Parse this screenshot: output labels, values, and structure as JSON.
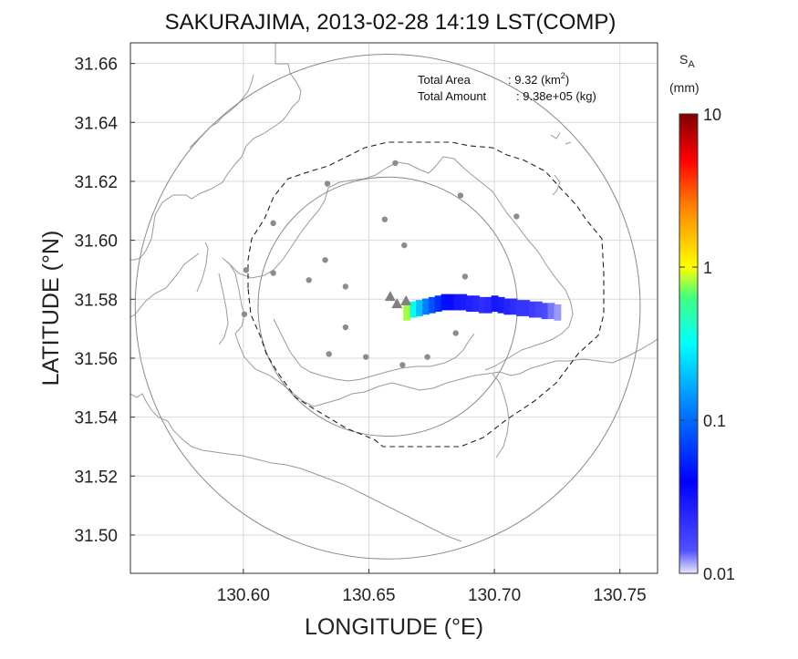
{
  "chart_data": {
    "type": "heatmap",
    "title": "SAKURAJIMA, 2013-02-28 14:19 LST(COMP)",
    "xlabel": "LONGITUDE (°E)",
    "ylabel": "LATITUDE (°N)",
    "xlim": [
      130.555,
      130.765
    ],
    "ylim": [
      31.487,
      31.667
    ],
    "x_ticks": [
      130.6,
      130.65,
      130.7,
      130.75
    ],
    "x_tick_labels": [
      "130.60",
      "130.65",
      "130.70",
      "130.75"
    ],
    "y_ticks": [
      31.5,
      31.52,
      31.54,
      31.56,
      31.58,
      31.6,
      31.62,
      31.64,
      31.66
    ],
    "y_tick_labels": [
      "31.50",
      "31.52",
      "31.54",
      "31.56",
      "31.58",
      "31.60",
      "31.62",
      "31.64",
      "31.66"
    ],
    "grid": true,
    "annotations": {
      "total_area_label": "Total Area",
      "total_area_value": ": 9.32 (km",
      "total_area_sup": "2",
      "total_area_close": ")",
      "total_amount_label": "Total Amount",
      "total_amount_value": ": 9.38e+05 (kg)"
    },
    "colorbar": {
      "label_main": "S",
      "label_sub": "A",
      "unit": "(mm)",
      "scale": "log",
      "range": [
        0.01,
        10
      ],
      "ticks": [
        10,
        1,
        0.1,
        0.01
      ],
      "tick_labels": [
        "10",
        "1",
        "0.1",
        "0.01"
      ],
      "colormap": "jet (white at 0.01, dark red at 10)"
    },
    "volcano_vents": [
      {
        "lon": 130.6585,
        "lat": 31.581
      },
      {
        "lon": 130.6612,
        "lat": 31.5785
      },
      {
        "lon": 130.6648,
        "lat": 31.5795
      }
    ],
    "stations": [
      {
        "lon": 130.6605,
        "lat": 31.6262
      },
      {
        "lon": 130.6335,
        "lat": 31.6192
      },
      {
        "lon": 130.6865,
        "lat": 31.6152
      },
      {
        "lon": 130.6119,
        "lat": 31.6058
      },
      {
        "lon": 130.6563,
        "lat": 31.6071
      },
      {
        "lon": 130.7088,
        "lat": 31.6081
      },
      {
        "lon": 130.6641,
        "lat": 31.5983
      },
      {
        "lon": 130.6011,
        "lat": 31.5899
      },
      {
        "lon": 130.6326,
        "lat": 31.5933
      },
      {
        "lon": 130.6119,
        "lat": 31.5889
      },
      {
        "lon": 130.6261,
        "lat": 31.5865
      },
      {
        "lon": 130.6883,
        "lat": 31.5877
      },
      {
        "lon": 130.6407,
        "lat": 31.5843
      },
      {
        "lon": 130.6004,
        "lat": 31.5749
      },
      {
        "lon": 130.6407,
        "lat": 31.5705
      },
      {
        "lon": 130.6846,
        "lat": 31.5685
      },
      {
        "lon": 130.6341,
        "lat": 31.5614
      },
      {
        "lon": 130.6488,
        "lat": 31.5604
      },
      {
        "lon": 130.6733,
        "lat": 31.5604
      },
      {
        "lon": 130.6634,
        "lat": 31.5577
      }
    ],
    "range_rings": [
      {
        "center_lon": 130.6575,
        "center_lat": 31.5775,
        "radius_deg": 0.0925
      },
      {
        "center_lon": 130.6575,
        "center_lat": 31.5775,
        "radius_deg": 0.0475
      }
    ],
    "ash_plume": {
      "units": "mm",
      "cells": [
        {
          "lon": 130.665,
          "lat": 31.5755,
          "value": 0.8
        },
        {
          "lon": 130.6675,
          "lat": 31.5765,
          "value": 0.35
        },
        {
          "lon": 130.67,
          "lat": 31.577,
          "value": 0.2
        },
        {
          "lon": 130.6725,
          "lat": 31.5775,
          "value": 0.12
        },
        {
          "lon": 130.675,
          "lat": 31.578,
          "value": 0.08
        },
        {
          "lon": 130.6775,
          "lat": 31.5785,
          "value": 0.06
        },
        {
          "lon": 130.68,
          "lat": 31.579,
          "value": 0.045
        },
        {
          "lon": 130.6825,
          "lat": 31.579,
          "value": 0.035
        },
        {
          "lon": 130.685,
          "lat": 31.579,
          "value": 0.03
        },
        {
          "lon": 130.6875,
          "lat": 31.579,
          "value": 0.028
        },
        {
          "lon": 130.69,
          "lat": 31.5785,
          "value": 0.026
        },
        {
          "lon": 130.6925,
          "lat": 31.5785,
          "value": 0.024
        },
        {
          "lon": 130.695,
          "lat": 31.578,
          "value": 0.022
        },
        {
          "lon": 130.6975,
          "lat": 31.578,
          "value": 0.024
        },
        {
          "lon": 130.7,
          "lat": 31.5785,
          "value": 0.03
        },
        {
          "lon": 130.7025,
          "lat": 31.578,
          "value": 0.028
        },
        {
          "lon": 130.705,
          "lat": 31.5775,
          "value": 0.025
        },
        {
          "lon": 130.7075,
          "lat": 31.5775,
          "value": 0.022
        },
        {
          "lon": 130.71,
          "lat": 31.577,
          "value": 0.02
        },
        {
          "lon": 130.7125,
          "lat": 31.577,
          "value": 0.02
        },
        {
          "lon": 130.715,
          "lat": 31.5765,
          "value": 0.018
        },
        {
          "lon": 130.7175,
          "lat": 31.5765,
          "value": 0.016
        },
        {
          "lon": 130.72,
          "lat": 31.576,
          "value": 0.015
        },
        {
          "lon": 130.7225,
          "lat": 31.576,
          "value": 0.013
        },
        {
          "lon": 130.725,
          "lat": 31.5755,
          "value": 0.012
        }
      ]
    },
    "colors": {
      "grid": "#d9d9d9",
      "coastline": "#9a9a9a",
      "rings": "#8a8a8a",
      "stations": "#8c8c8c",
      "vents": "#808080"
    }
  }
}
